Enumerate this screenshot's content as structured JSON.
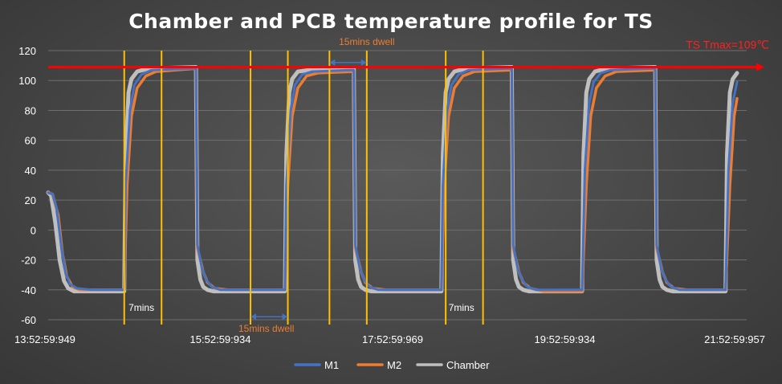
{
  "chart_data": {
    "type": "line",
    "title": "Chamber and PCB temperature profile for TS",
    "xlabel": "",
    "ylabel": "",
    "ylim": [
      -60,
      120
    ],
    "yticks": [
      -60,
      -40,
      -20,
      0,
      20,
      40,
      60,
      80,
      100,
      120
    ],
    "xtick_labels": [
      "13:52:59:949",
      "15:52:59:934",
      "17:52:59:969",
      "19:52:59:934",
      "21:52:59:957"
    ],
    "grid": true,
    "legend_position": "bottom",
    "legend": [
      "M1",
      "M2",
      "Chamber"
    ],
    "colors": {
      "M1": "#4472c4",
      "M2": "#ed7d31",
      "Chamber": "#bfbfbf",
      "vertical_markers": "#ffc000",
      "tmax_line": "#ff0000",
      "dwell_arrow": "#4472c4"
    },
    "x_axis": "minutes from 13:52:59:949",
    "xlim": [
      0,
      480
    ],
    "series": [
      {
        "name": "M1",
        "points": [
          [
            0,
            25
          ],
          [
            3,
            24
          ],
          [
            6,
            14
          ],
          [
            9,
            -10
          ],
          [
            12,
            -28
          ],
          [
            15,
            -36
          ],
          [
            20,
            -39
          ],
          [
            30,
            -40
          ],
          [
            53,
            -40
          ],
          [
            54,
            30
          ],
          [
            57,
            80
          ],
          [
            60,
            97
          ],
          [
            65,
            104
          ],
          [
            72,
            107
          ],
          [
            100,
            108
          ],
          [
            103,
            108
          ],
          [
            104,
            -10
          ],
          [
            107,
            -25
          ],
          [
            110,
            -33
          ],
          [
            114,
            -38
          ],
          [
            120,
            -40
          ],
          [
            145,
            -40
          ],
          [
            165,
            -40
          ],
          [
            166,
            30
          ],
          [
            169,
            80
          ],
          [
            172,
            97
          ],
          [
            177,
            104
          ],
          [
            184,
            106
          ],
          [
            210,
            107
          ],
          [
            213,
            107
          ],
          [
            214,
            -10
          ],
          [
            217,
            -25
          ],
          [
            220,
            -33
          ],
          [
            224,
            -38
          ],
          [
            230,
            -40
          ],
          [
            255,
            -40
          ],
          [
            274,
            -40
          ],
          [
            275,
            30
          ],
          [
            278,
            80
          ],
          [
            281,
            97
          ],
          [
            286,
            104
          ],
          [
            293,
            107
          ],
          [
            320,
            108
          ],
          [
            323,
            108
          ],
          [
            324,
            -10
          ],
          [
            327,
            -25
          ],
          [
            330,
            -33
          ],
          [
            334,
            -38
          ],
          [
            340,
            -40
          ],
          [
            372,
            -40
          ],
          [
            374,
            40
          ],
          [
            377,
            85
          ],
          [
            380,
            99
          ],
          [
            385,
            105
          ],
          [
            392,
            107
          ],
          [
            420,
            108
          ],
          [
            423,
            108
          ],
          [
            424,
            -10
          ],
          [
            427,
            -25
          ],
          [
            430,
            -33
          ],
          [
            434,
            -38
          ],
          [
            440,
            -40
          ],
          [
            472,
            -40
          ],
          [
            474,
            40
          ],
          [
            477,
            85
          ],
          [
            480,
            99
          ]
        ]
      },
      {
        "name": "M2",
        "points": [
          [
            0,
            25
          ],
          [
            3,
            24
          ],
          [
            7,
            10
          ],
          [
            10,
            -16
          ],
          [
            13,
            -31
          ],
          [
            17,
            -38
          ],
          [
            22,
            -40
          ],
          [
            30,
            -40
          ],
          [
            53,
            -40
          ],
          [
            55,
            30
          ],
          [
            58,
            76
          ],
          [
            62,
            95
          ],
          [
            68,
            103
          ],
          [
            75,
            106
          ],
          [
            103,
            108
          ],
          [
            104,
            -12
          ],
          [
            108,
            -28
          ],
          [
            111,
            -35
          ],
          [
            116,
            -39
          ],
          [
            125,
            -40
          ],
          [
            165,
            -40
          ],
          [
            167,
            30
          ],
          [
            170,
            76
          ],
          [
            174,
            95
          ],
          [
            180,
            103
          ],
          [
            188,
            105
          ],
          [
            213,
            106
          ],
          [
            214,
            -12
          ],
          [
            218,
            -28
          ],
          [
            221,
            -35
          ],
          [
            226,
            -39
          ],
          [
            235,
            -40
          ],
          [
            274,
            -40
          ],
          [
            276,
            30
          ],
          [
            279,
            76
          ],
          [
            283,
            95
          ],
          [
            289,
            103
          ],
          [
            297,
            106
          ],
          [
            323,
            107
          ],
          [
            324,
            -12
          ],
          [
            328,
            -28
          ],
          [
            331,
            -35
          ],
          [
            336,
            -39
          ],
          [
            345,
            -41
          ],
          [
            372,
            -41
          ],
          [
            375,
            30
          ],
          [
            378,
            76
          ],
          [
            382,
            95
          ],
          [
            388,
            103
          ],
          [
            396,
            106
          ],
          [
            423,
            107
          ],
          [
            424,
            -12
          ],
          [
            428,
            -28
          ],
          [
            431,
            -35
          ],
          [
            436,
            -39
          ],
          [
            445,
            -40
          ],
          [
            472,
            -40
          ],
          [
            475,
            30
          ],
          [
            478,
            76
          ],
          [
            480,
            88
          ]
        ]
      },
      {
        "name": "Chamber",
        "points": [
          [
            0,
            25
          ],
          [
            2,
            23
          ],
          [
            5,
            5
          ],
          [
            8,
            -20
          ],
          [
            11,
            -34
          ],
          [
            14,
            -39
          ],
          [
            18,
            -41
          ],
          [
            53,
            -41
          ],
          [
            54,
            50
          ],
          [
            56,
            92
          ],
          [
            58,
            101
          ],
          [
            62,
            106
          ],
          [
            70,
            108
          ],
          [
            102,
            109
          ],
          [
            103,
            109
          ],
          [
            104,
            -20
          ],
          [
            106,
            -33
          ],
          [
            108,
            -38
          ],
          [
            111,
            -40
          ],
          [
            115,
            -41
          ],
          [
            165,
            -41
          ],
          [
            166,
            50
          ],
          [
            168,
            92
          ],
          [
            170,
            101
          ],
          [
            174,
            106
          ],
          [
            182,
            107
          ],
          [
            212,
            108
          ],
          [
            213,
            108
          ],
          [
            214,
            -20
          ],
          [
            216,
            -33
          ],
          [
            218,
            -38
          ],
          [
            221,
            -40
          ],
          [
            225,
            -41
          ],
          [
            274,
            -41
          ],
          [
            275,
            50
          ],
          [
            277,
            92
          ],
          [
            279,
            101
          ],
          [
            283,
            106
          ],
          [
            291,
            108
          ],
          [
            322,
            109
          ],
          [
            323,
            109
          ],
          [
            324,
            -20
          ],
          [
            326,
            -33
          ],
          [
            328,
            -38
          ],
          [
            331,
            -40
          ],
          [
            335,
            -41
          ],
          [
            372,
            -41
          ],
          [
            373,
            50
          ],
          [
            375,
            92
          ],
          [
            377,
            101
          ],
          [
            381,
            106
          ],
          [
            389,
            108
          ],
          [
            422,
            109
          ],
          [
            423,
            109
          ],
          [
            424,
            -20
          ],
          [
            426,
            -33
          ],
          [
            428,
            -38
          ],
          [
            431,
            -40
          ],
          [
            435,
            -41
          ],
          [
            472,
            -41
          ],
          [
            473,
            50
          ],
          [
            475,
            92
          ],
          [
            477,
            101
          ],
          [
            480,
            105
          ]
        ]
      }
    ],
    "tmax": {
      "value": 109,
      "label": "TS Tmax=109℃"
    },
    "vertical_markers_x": [
      53,
      79,
      141,
      167,
      196,
      222,
      277,
      303
    ],
    "annotations": [
      {
        "id": "ann-dwell-top",
        "text": "15mins dwell",
        "color": "orange",
        "x": 222,
        "y": 126
      },
      {
        "id": "ann-dwell-bottom",
        "text": "15mins dwell",
        "color": "orange",
        "x": 152,
        "y": -66
      },
      {
        "id": "ann-7mins-left",
        "text": "7mins",
        "color": "white",
        "x": 56,
        "y": -52
      },
      {
        "id": "ann-7mins-right",
        "text": "7mins",
        "color": "white",
        "x": 279,
        "y": -52
      }
    ],
    "dwell_arrows": [
      {
        "from_x": 196,
        "to_x": 222,
        "y": 112
      },
      {
        "from_x": 141,
        "to_x": 167,
        "y": -58
      }
    ]
  }
}
